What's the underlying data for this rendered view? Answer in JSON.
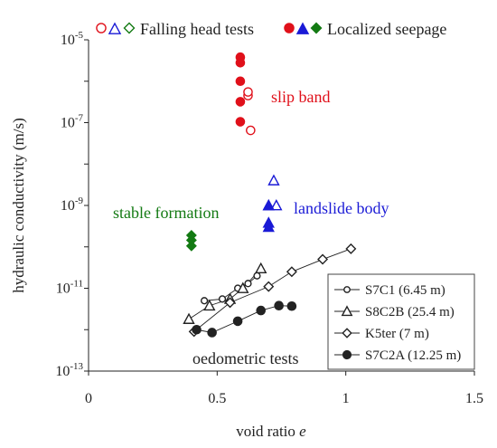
{
  "chart_data": {
    "type": "scatter",
    "xlabel": "void ratio",
    "xlabel_symbol": "e",
    "ylabel": "hydraulic conductivity (m/s)",
    "xlim": [
      0,
      1.5
    ],
    "ylim_log10": [
      -13,
      -5
    ],
    "y_scale": "log",
    "grid": false,
    "x_ticks": [
      "0",
      "0.5",
      "1",
      "1.5"
    ],
    "x_tick_values": [
      0,
      0.5,
      1,
      1.5
    ],
    "y_ticks": [
      {
        "base": "10",
        "exp": "-5",
        "value": -5
      },
      {
        "base": "10",
        "exp": "-7",
        "value": -7
      },
      {
        "base": "10",
        "exp": "-9",
        "value": -9
      },
      {
        "base": "10",
        "exp": "-11",
        "value": -11
      },
      {
        "base": "10",
        "exp": "-13",
        "value": -13
      }
    ],
    "top_legend": {
      "falling_label": "Falling head tests",
      "localized_label": "Localized seepage"
    },
    "annotations": {
      "slip_band": "slip band",
      "landslide_body": "landslide body",
      "stable_formation": "stable formation",
      "oedometric": "oedometric tests"
    },
    "colors": {
      "red": "#e0101a",
      "blue": "#1a1ad6",
      "green": "#137a13",
      "black": "#222222"
    },
    "falling_head": {
      "red_open_circle": [
        [
          0.62,
          4.5e-07
        ],
        [
          0.62,
          5.5e-07
        ],
        [
          0.63,
          6.5e-08
        ]
      ],
      "blue_open_triangle": [
        [
          0.72,
          4e-09
        ],
        [
          0.7,
          1e-09
        ],
        [
          0.73,
          1e-09
        ]
      ],
      "green_open_diamond": []
    },
    "localized_seepage": {
      "red_filled_circle": [
        [
          0.59,
          3.8e-06
        ],
        [
          0.59,
          2.8e-06
        ],
        [
          0.59,
          1e-06
        ],
        [
          0.59,
          3.2e-07
        ],
        [
          0.59,
          1.05e-07
        ]
      ],
      "blue_filled_triangle": [
        [
          0.7,
          1e-09
        ],
        [
          0.7,
          3.8e-10
        ],
        [
          0.7,
          3e-10
        ]
      ],
      "green_filled_diamond": [
        [
          0.4,
          1.9e-10
        ],
        [
          0.4,
          1.45e-10
        ],
        [
          0.4,
          1.05e-10
        ]
      ]
    },
    "series": [
      {
        "name": "S7C1 (6.45 m)",
        "marker": "small-open-circle",
        "points": [
          [
            0.45,
            5e-12
          ],
          [
            0.52,
            5.5e-12
          ],
          [
            0.58,
            1e-11
          ],
          [
            0.62,
            1.3e-11
          ],
          [
            0.655,
            2e-11
          ]
        ]
      },
      {
        "name": "S8C2B (25.4 m)",
        "marker": "open-triangle",
        "points": [
          [
            0.39,
            1.8e-12
          ],
          [
            0.47,
            3.8e-12
          ],
          [
            0.55,
            5.5e-12
          ],
          [
            0.6,
            1e-11
          ],
          [
            0.67,
            3e-11
          ]
        ]
      },
      {
        "name": "K5ter (7 m)",
        "marker": "open-diamond",
        "points": [
          [
            0.41,
            9e-13
          ],
          [
            0.55,
            4.5e-12
          ],
          [
            0.7,
            1.1e-11
          ],
          [
            0.79,
            2.5e-11
          ],
          [
            0.91,
            5e-11
          ],
          [
            1.02,
            9e-11
          ]
        ]
      },
      {
        "name": "S7C2A (12.25 m)",
        "marker": "filled-circle",
        "points": [
          [
            0.42,
            1e-12
          ],
          [
            0.48,
            8.5e-13
          ],
          [
            0.58,
            1.6e-12
          ],
          [
            0.67,
            2.9e-12
          ],
          [
            0.74,
            3.8e-12
          ],
          [
            0.79,
            3.7e-12
          ]
        ]
      }
    ],
    "series_legend_placement": "bottom-right"
  }
}
